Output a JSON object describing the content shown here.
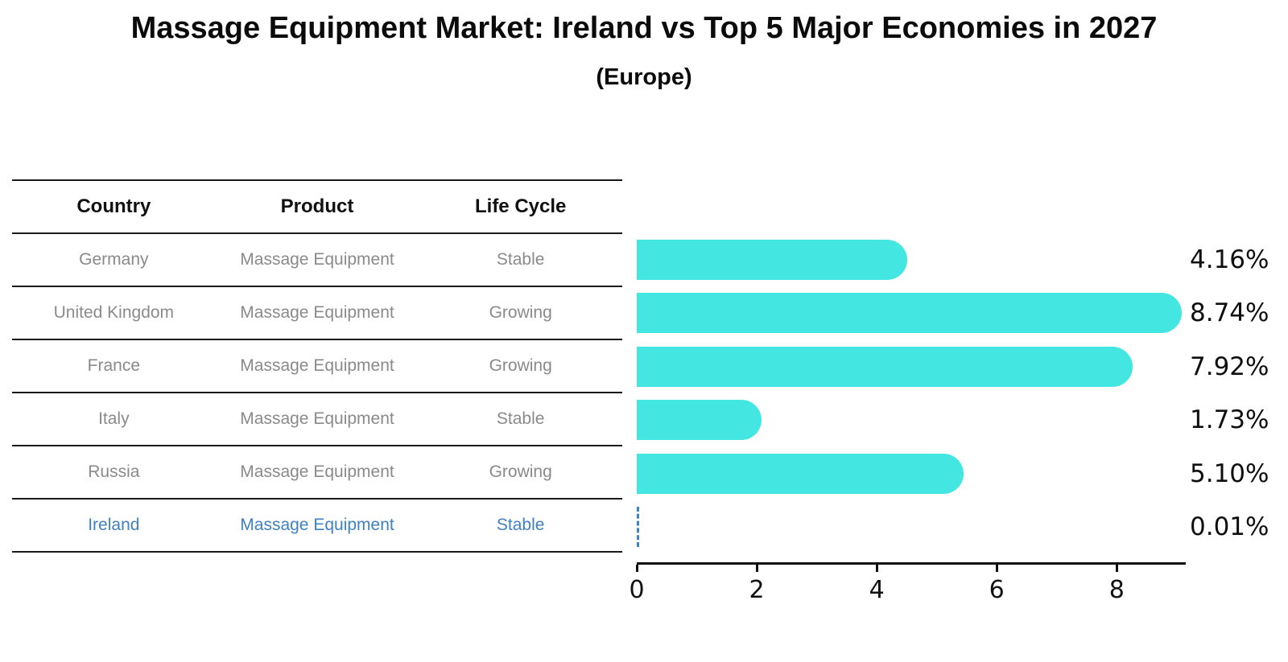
{
  "chart_data": {
    "type": "bar",
    "orientation": "horizontal",
    "title": "Massage Equipment Market: Ireland vs Top 5 Major Economies in 2027",
    "subtitle": "(Europe)",
    "categories": [
      "Germany",
      "United Kingdom",
      "France",
      "Italy",
      "Russia",
      "Ireland"
    ],
    "values": [
      4.16,
      8.74,
      7.92,
      1.73,
      5.1,
      0.01
    ],
    "labels": [
      "4.16%",
      "8.74%",
      "7.92%",
      "1.73%",
      "5.10%",
      "0.01%"
    ],
    "xticks": [
      0,
      2,
      4,
      6,
      8
    ],
    "xlim": [
      0,
      9.15
    ],
    "xlabel": "",
    "ylabel": "",
    "grid": false,
    "legend": "none",
    "bar_color": "#44e6e1",
    "highlight_color": "#3f81c1",
    "highlight_index": 5
  },
  "table": {
    "headers": [
      "Country",
      "Product",
      "Life Cycle"
    ],
    "rows": [
      {
        "country": "Germany",
        "product": "Massage Equipment",
        "life_cycle": "Stable",
        "highlight": false
      },
      {
        "country": "United Kingdom",
        "product": "Massage Equipment",
        "life_cycle": "Growing",
        "highlight": false
      },
      {
        "country": "France",
        "product": "Massage Equipment",
        "life_cycle": "Growing",
        "highlight": false
      },
      {
        "country": "Italy",
        "product": "Massage Equipment",
        "life_cycle": "Stable",
        "highlight": false
      },
      {
        "country": "Russia",
        "product": "Massage Equipment",
        "life_cycle": "Growing",
        "highlight": false
      },
      {
        "country": "Ireland",
        "product": "Massage Equipment",
        "life_cycle": "Stable",
        "highlight": true
      }
    ]
  },
  "colors": {
    "bar": "#44e6e1",
    "highlight": "#3f81c1",
    "table_text": "#8a8a8a",
    "heading_text": "#111111",
    "line": "#1a1a1a",
    "background": "#ffffff"
  }
}
